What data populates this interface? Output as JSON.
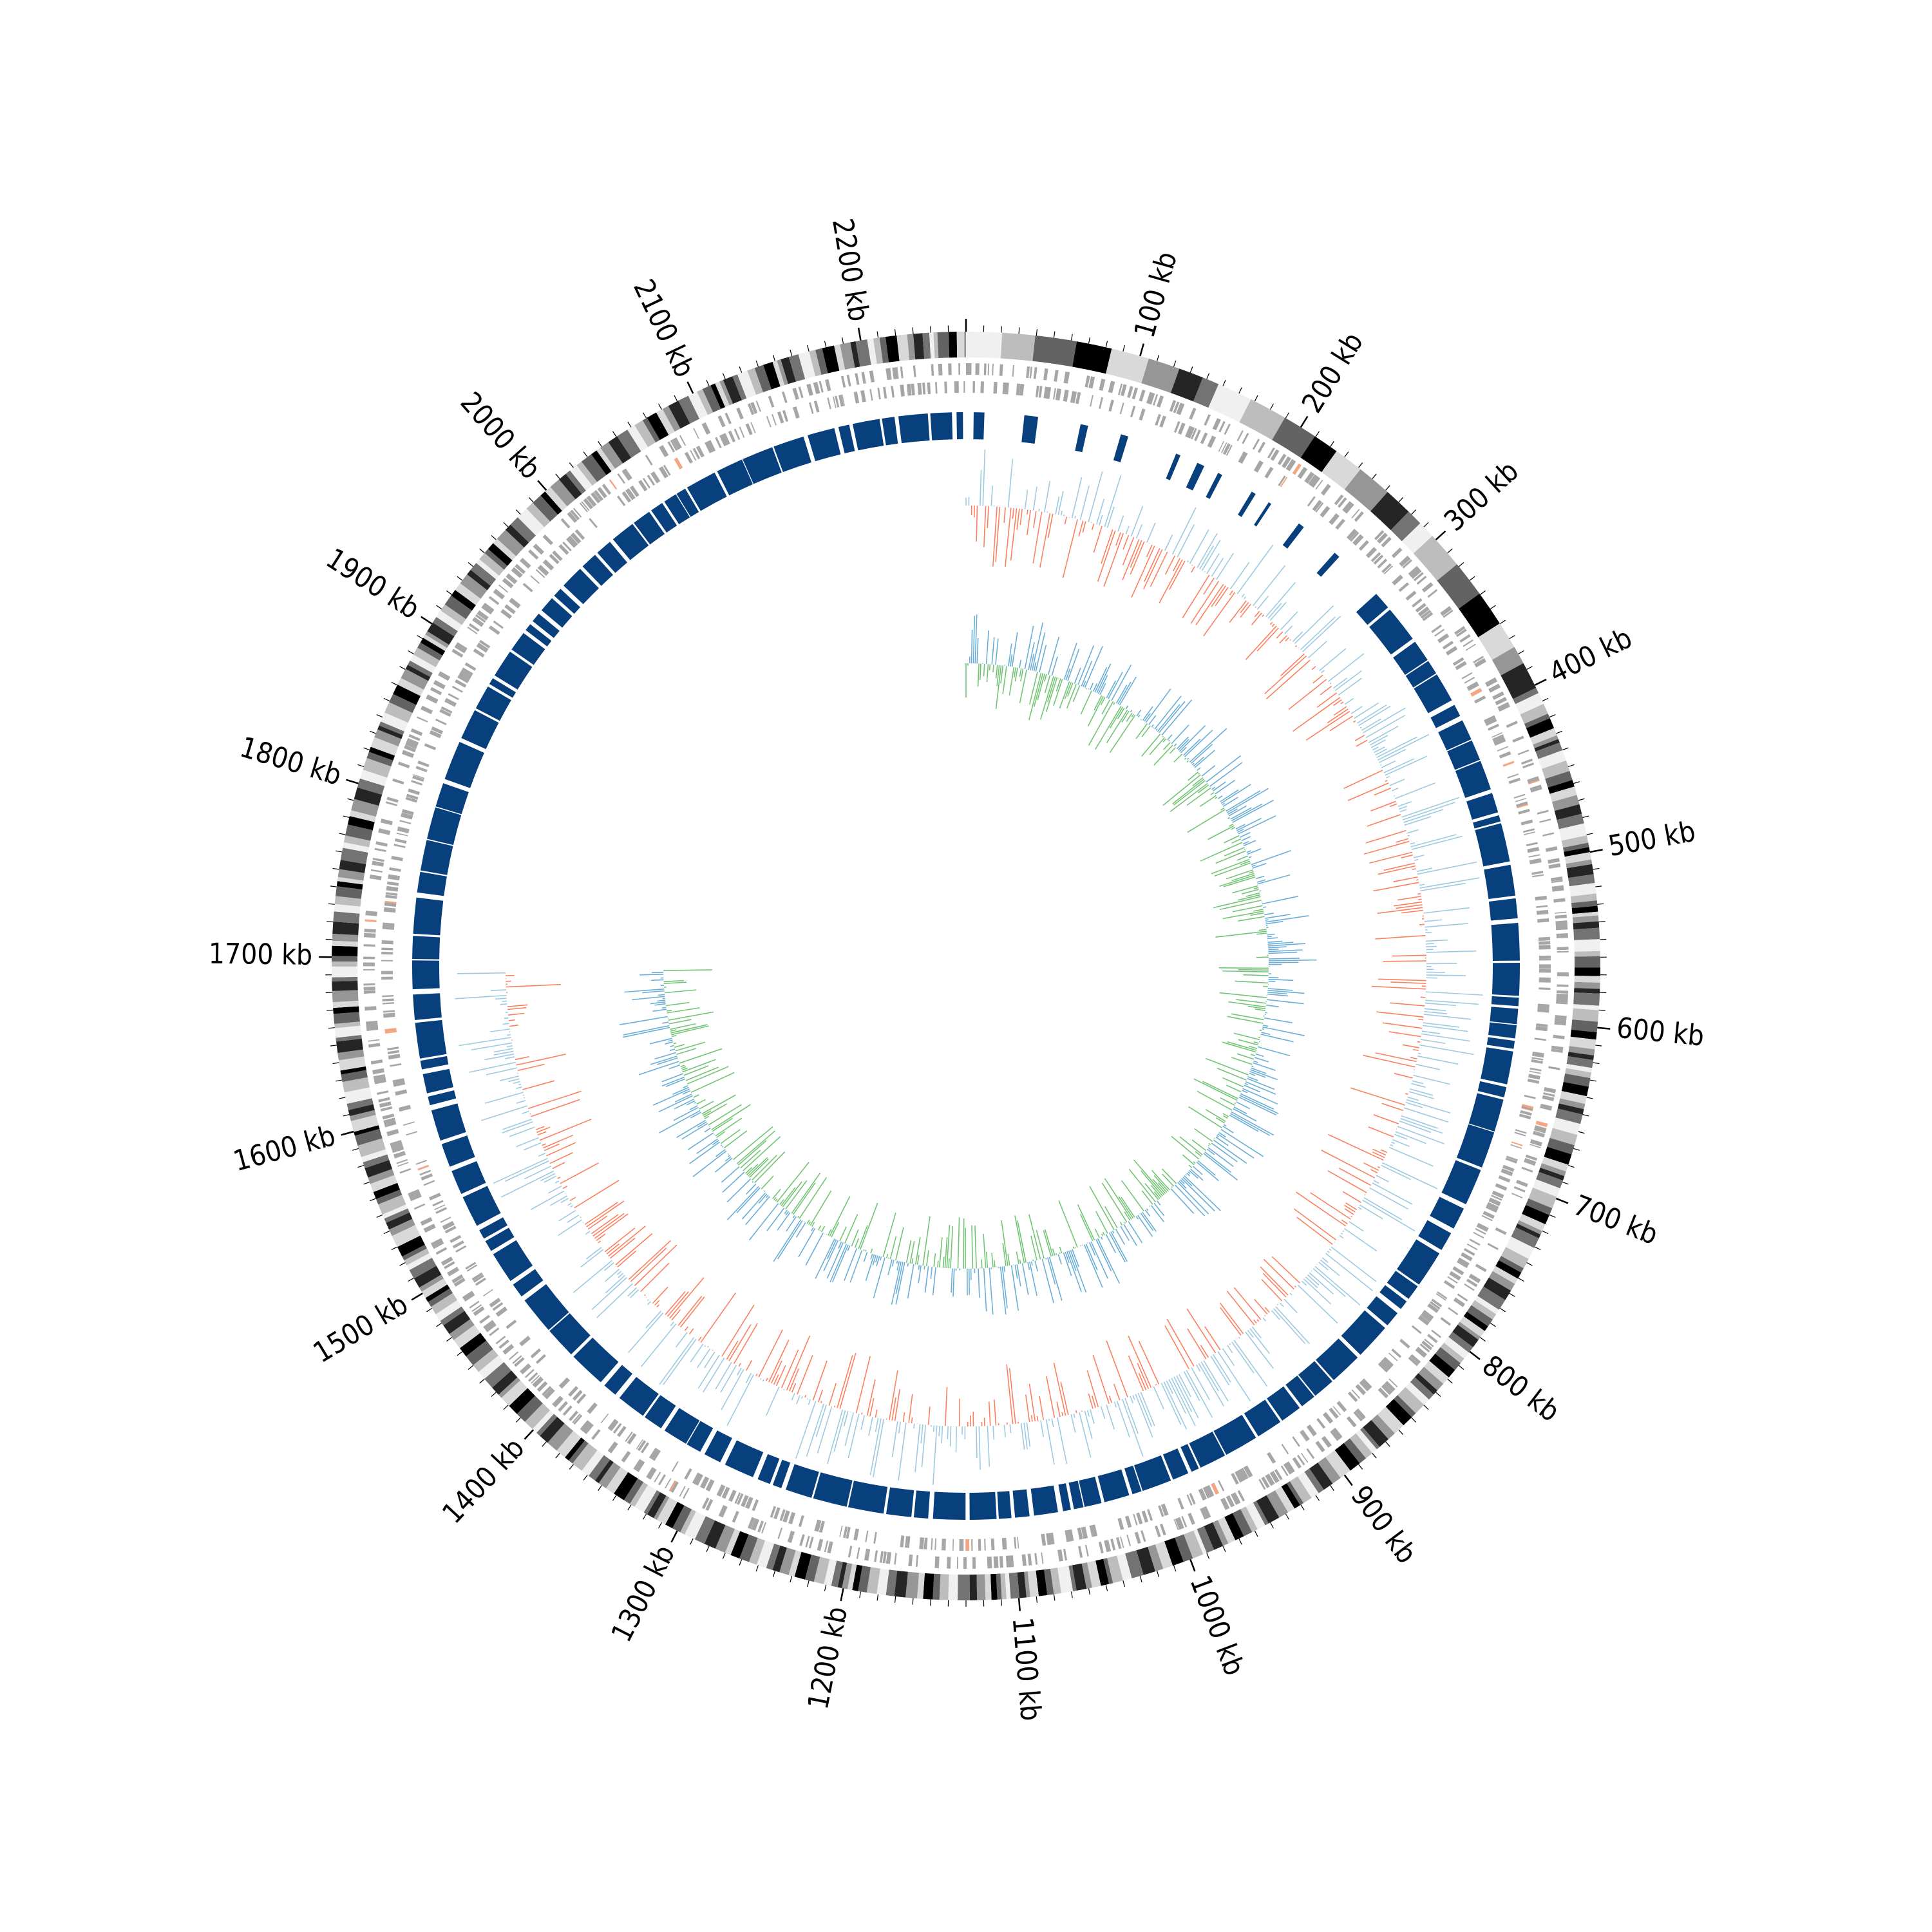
{
  "genome": {
    "length_kb": 2260,
    "major_tick_step_kb": 100,
    "tick_labels": [
      "100 kb",
      "200 kb",
      "300 kb",
      "400 kb",
      "500 kb",
      "600 kb",
      "700 kb",
      "800 kb",
      "900 kb",
      "1000 kb",
      "1100 kb",
      "1200 kb",
      "1300 kb",
      "1400 kb",
      "1500 kb",
      "1600 kb",
      "1700 kb",
      "1800 kb",
      "1900 kb",
      "2000 kb",
      "2100 kb",
      "2200 kb"
    ]
  },
  "tracks": {
    "ideogram": {
      "colors": [
        "#f0f0f0",
        "#bdbdbd",
        "#636363",
        "#000000",
        "#d9d9d9",
        "#969696",
        "#252525",
        "#737373"
      ]
    },
    "genes": {
      "color": "#a6a6a6",
      "highlight": "#f4a582"
    },
    "blocks": {
      "color": "#08407e"
    },
    "hist_outer": {
      "pos": "#9ecae1",
      "neg": "#fb8060"
    },
    "hist_inner": {
      "pos": "#6baed6",
      "neg": "#74c476"
    }
  }
}
